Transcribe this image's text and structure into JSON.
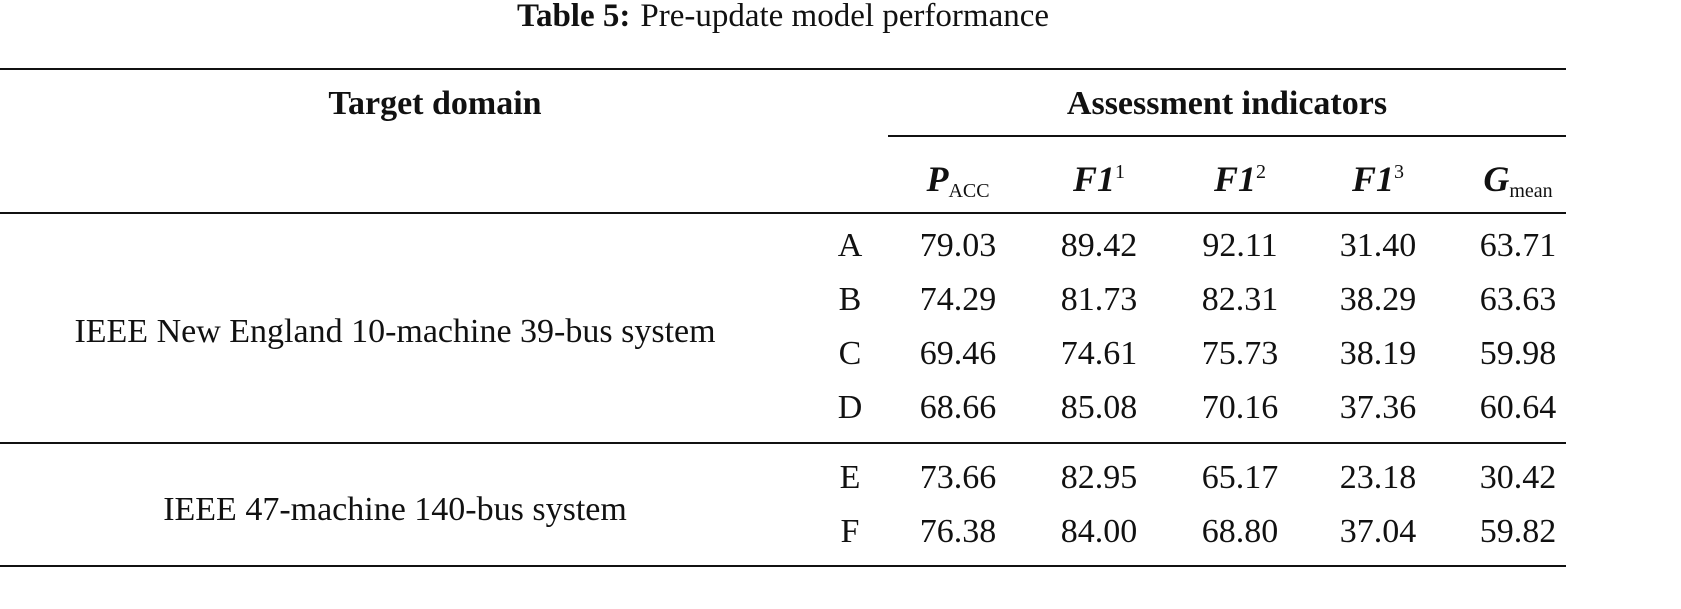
{
  "caption": {
    "label": "Table 5:",
    "text": "Pre-update model performance"
  },
  "table": {
    "header": {
      "domain": "Target domain",
      "indicators": "Assessment indicators",
      "columns": [
        {
          "main": "P",
          "sub": "ACC"
        },
        {
          "main": "F1",
          "sup": "1"
        },
        {
          "main": "F1",
          "sup": "2"
        },
        {
          "main": "F1",
          "sup": "3"
        },
        {
          "main": "G",
          "sub": "mean"
        }
      ]
    },
    "groups": [
      {
        "domain": "IEEE New England 10-machine 39-bus system",
        "rows": [
          {
            "label": "A",
            "values": [
              "79.03",
              "89.42",
              "92.11",
              "31.40",
              "63.71"
            ]
          },
          {
            "label": "B",
            "values": [
              "74.29",
              "81.73",
              "82.31",
              "38.29",
              "63.63"
            ]
          },
          {
            "label": "C",
            "values": [
              "69.46",
              "74.61",
              "75.73",
              "38.19",
              "59.98"
            ]
          },
          {
            "label": "D",
            "values": [
              "68.66",
              "85.08",
              "70.16",
              "37.36",
              "60.64"
            ]
          }
        ]
      },
      {
        "domain": "IEEE 47-machine 140-bus system",
        "rows": [
          {
            "label": "E",
            "values": [
              "73.66",
              "82.95",
              "65.17",
              "23.18",
              "30.42"
            ]
          },
          {
            "label": "F",
            "values": [
              "76.38",
              "84.00",
              "68.80",
              "37.04",
              "59.82"
            ]
          }
        ]
      }
    ]
  }
}
